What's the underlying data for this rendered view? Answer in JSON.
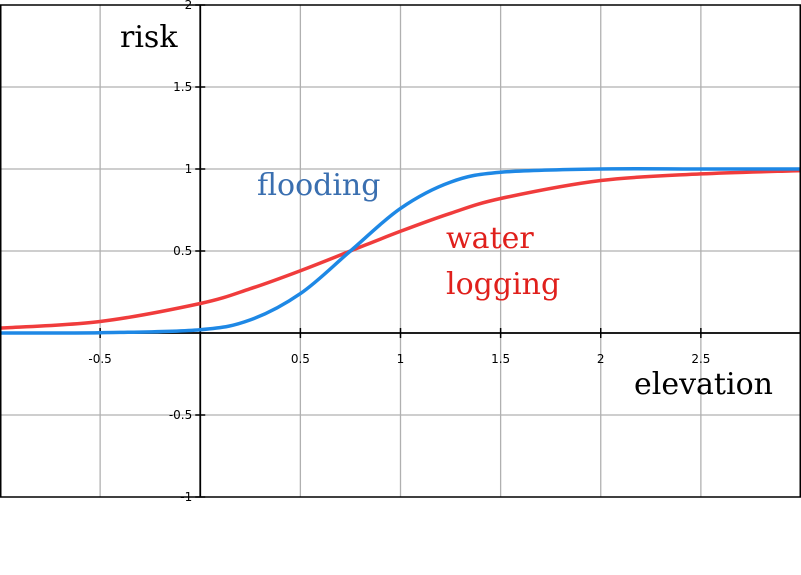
{
  "chart_data": {
    "type": "line",
    "xlabel": "elevation",
    "ylabel": "risk",
    "xlim": [
      -1,
      3
    ],
    "ylim": [
      -1,
      2
    ],
    "grid": true,
    "x_ticks": [
      -0.5,
      0.5,
      1,
      1.5,
      2,
      2.5
    ],
    "x_tick_labels": [
      "-0.5",
      "0.5",
      "1",
      "1.5",
      "2",
      "2.5"
    ],
    "y_ticks": [
      -1,
      -0.5,
      0.5,
      1,
      1.5,
      2
    ],
    "y_tick_labels": [
      "-1",
      "-0.5",
      "0.5",
      "1",
      "1.5",
      "2"
    ],
    "series": [
      {
        "name": "flooding",
        "color": "#1e88e5",
        "label_color": "#3a6fb0",
        "x": [
          -1,
          -0.5,
          0,
          0.25,
          0.5,
          0.75,
          1,
          1.25,
          1.5,
          2,
          2.5,
          3
        ],
        "y": [
          0.0,
          0.002,
          0.02,
          0.08,
          0.24,
          0.5,
          0.76,
          0.92,
          0.98,
          1.0,
          1.0,
          1.0
        ]
      },
      {
        "name": "water logging",
        "label_lines": [
          "water",
          "logging"
        ],
        "color": "#f03c3c",
        "label_color": "#e0201c",
        "x": [
          -1,
          -0.5,
          0,
          0.25,
          0.5,
          0.75,
          1,
          1.25,
          1.5,
          2,
          2.5,
          3
        ],
        "y": [
          0.03,
          0.07,
          0.18,
          0.27,
          0.38,
          0.5,
          0.62,
          0.73,
          0.82,
          0.93,
          0.97,
          0.99
        ]
      }
    ]
  }
}
